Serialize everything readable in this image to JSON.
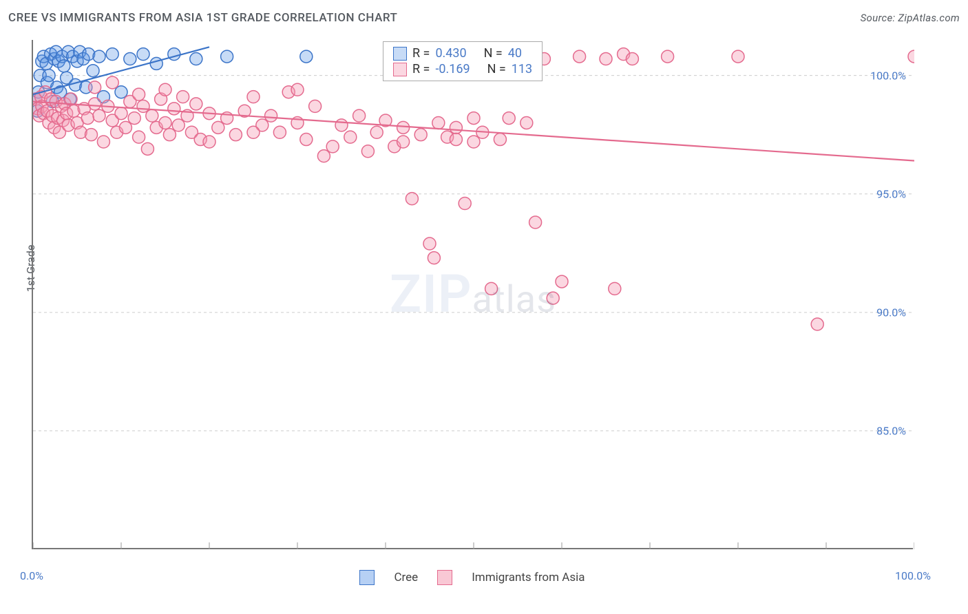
{
  "title": "CREE VS IMMIGRANTS FROM ASIA 1ST GRADE CORRELATION CHART",
  "source": "Source: ZipAtlas.com",
  "ylabel": "1st Grade",
  "watermark": {
    "bold": "ZIP",
    "light": "atlas"
  },
  "chart": {
    "type": "scatter",
    "xlim": [
      0,
      100
    ],
    "ylim": [
      80,
      101.5
    ],
    "xticks": [
      0,
      10,
      20,
      30,
      40,
      50,
      60,
      70,
      80,
      90,
      100
    ],
    "xtick_labels": {
      "0": "0.0%",
      "100": "100.0%"
    },
    "yticks": [
      85,
      90,
      95,
      100
    ],
    "ytick_labels": [
      "85.0%",
      "90.0%",
      "95.0%",
      "100.0%"
    ],
    "grid_color": "#cccccc",
    "grid_dash": "4,4",
    "background_color": "#ffffff",
    "marker_radius": 9,
    "marker_stroke_width": 1.5,
    "trend_line_width": 2.2,
    "series": [
      {
        "name": "Cree",
        "fill": "rgba(94,151,230,0.35)",
        "stroke": "#3b74c8",
        "R": "0.430",
        "N": "40",
        "trend": {
          "x1": 0,
          "y1": 99.2,
          "x2": 20,
          "y2": 101.2
        },
        "points": [
          [
            0.3,
            99.0
          ],
          [
            0.5,
            98.5
          ],
          [
            0.6,
            99.3
          ],
          [
            0.8,
            100.0
          ],
          [
            1.0,
            100.6
          ],
          [
            1.2,
            100.8
          ],
          [
            1.5,
            100.5
          ],
          [
            1.6,
            99.7
          ],
          [
            1.8,
            100.0
          ],
          [
            2.0,
            100.9
          ],
          [
            2.2,
            98.9
          ],
          [
            2.4,
            100.7
          ],
          [
            2.6,
            101.0
          ],
          [
            2.7,
            99.5
          ],
          [
            2.9,
            100.6
          ],
          [
            3.1,
            99.3
          ],
          [
            3.3,
            100.8
          ],
          [
            3.5,
            100.4
          ],
          [
            3.8,
            99.9
          ],
          [
            4.0,
            101.0
          ],
          [
            4.2,
            99.0
          ],
          [
            4.5,
            100.8
          ],
          [
            4.8,
            99.6
          ],
          [
            5.0,
            100.6
          ],
          [
            5.3,
            101.0
          ],
          [
            5.7,
            100.7
          ],
          [
            6.0,
            99.5
          ],
          [
            6.3,
            100.9
          ],
          [
            6.8,
            100.2
          ],
          [
            7.5,
            100.8
          ],
          [
            8.0,
            99.1
          ],
          [
            9.0,
            100.9
          ],
          [
            10.0,
            99.3
          ],
          [
            11.0,
            100.7
          ],
          [
            12.5,
            100.9
          ],
          [
            14.0,
            100.5
          ],
          [
            16.0,
            100.9
          ],
          [
            18.5,
            100.7
          ],
          [
            22.0,
            100.8
          ],
          [
            31.0,
            100.8
          ]
        ]
      },
      {
        "name": "Immigrants from Asia",
        "fill": "rgba(244,154,179,0.40)",
        "stroke": "#e46a8e",
        "R": "-0.169",
        "N": "113",
        "trend": {
          "x1": 0,
          "y1": 98.9,
          "x2": 100,
          "y2": 96.4
        },
        "points": [
          [
            0.3,
            99.0
          ],
          [
            0.5,
            98.6
          ],
          [
            0.7,
            98.3
          ],
          [
            0.9,
            99.1
          ],
          [
            1.0,
            98.7
          ],
          [
            1.2,
            98.4
          ],
          [
            1.4,
            99.3
          ],
          [
            1.6,
            98.5
          ],
          [
            1.8,
            98.0
          ],
          [
            2.0,
            99.0
          ],
          [
            2.2,
            98.3
          ],
          [
            2.4,
            97.8
          ],
          [
            2.6,
            98.9
          ],
          [
            2.8,
            98.2
          ],
          [
            3.0,
            97.6
          ],
          [
            3.2,
            98.7
          ],
          [
            3.4,
            98.1
          ],
          [
            3.6,
            98.8
          ],
          [
            3.8,
            98.4
          ],
          [
            4.0,
            97.9
          ],
          [
            4.3,
            99.0
          ],
          [
            4.6,
            98.5
          ],
          [
            5.0,
            98.0
          ],
          [
            5.4,
            97.6
          ],
          [
            5.8,
            98.6
          ],
          [
            6.2,
            98.2
          ],
          [
            6.6,
            97.5
          ],
          [
            7.0,
            98.8
          ],
          [
            7.5,
            98.3
          ],
          [
            8.0,
            97.2
          ],
          [
            8.5,
            98.7
          ],
          [
            9.0,
            98.1
          ],
          [
            9.5,
            97.6
          ],
          [
            10.0,
            98.4
          ],
          [
            10.5,
            97.8
          ],
          [
            11.0,
            98.9
          ],
          [
            11.5,
            98.2
          ],
          [
            12.0,
            97.4
          ],
          [
            12.5,
            98.7
          ],
          [
            13.0,
            96.9
          ],
          [
            13.5,
            98.3
          ],
          [
            14.0,
            97.8
          ],
          [
            14.5,
            99.0
          ],
          [
            15.0,
            98.0
          ],
          [
            15.5,
            97.5
          ],
          [
            16.0,
            98.6
          ],
          [
            16.5,
            97.9
          ],
          [
            17.0,
            99.1
          ],
          [
            17.5,
            98.3
          ],
          [
            18.0,
            97.6
          ],
          [
            18.5,
            98.8
          ],
          [
            19.0,
            97.3
          ],
          [
            20.0,
            98.4
          ],
          [
            21.0,
            97.8
          ],
          [
            22.0,
            98.2
          ],
          [
            23.0,
            97.5
          ],
          [
            24.0,
            98.5
          ],
          [
            25.0,
            99.1
          ],
          [
            26.0,
            97.9
          ],
          [
            27.0,
            98.3
          ],
          [
            28.0,
            97.6
          ],
          [
            29.0,
            99.3
          ],
          [
            30.0,
            98.0
          ],
          [
            31.0,
            97.3
          ],
          [
            32.0,
            98.7
          ],
          [
            33.0,
            96.6
          ],
          [
            34.0,
            97.0
          ],
          [
            35.0,
            97.9
          ],
          [
            36.0,
            97.4
          ],
          [
            37.0,
            98.3
          ],
          [
            38.0,
            96.8
          ],
          [
            39.0,
            97.6
          ],
          [
            40.0,
            98.1
          ],
          [
            41.0,
            97.0
          ],
          [
            42.0,
            97.8
          ],
          [
            43.0,
            94.8
          ],
          [
            44.0,
            97.5
          ],
          [
            45.0,
            92.9
          ],
          [
            45.5,
            92.3
          ],
          [
            46.0,
            98.0
          ],
          [
            47.0,
            97.4
          ],
          [
            48.0,
            97.8
          ],
          [
            49.0,
            94.6
          ],
          [
            50.0,
            97.2
          ],
          [
            51.0,
            97.6
          ],
          [
            52.0,
            91.0
          ],
          [
            53.0,
            97.3
          ],
          [
            54.0,
            98.2
          ],
          [
            55.0,
            100.8
          ],
          [
            56.0,
            98.0
          ],
          [
            57.0,
            93.8
          ],
          [
            58.0,
            100.7
          ],
          [
            59.0,
            90.6
          ],
          [
            60.0,
            91.3
          ],
          [
            62.0,
            100.8
          ],
          [
            65.0,
            100.7
          ],
          [
            66.0,
            91.0
          ],
          [
            67.0,
            100.9
          ],
          [
            68.0,
            100.7
          ],
          [
            72.0,
            100.8
          ],
          [
            80.0,
            100.8
          ],
          [
            89.0,
            89.5
          ],
          [
            100.0,
            100.8
          ],
          [
            7.0,
            99.5
          ],
          [
            9.0,
            99.7
          ],
          [
            12.0,
            99.2
          ],
          [
            15.0,
            99.4
          ],
          [
            20.0,
            97.2
          ],
          [
            25.0,
            97.6
          ],
          [
            30.0,
            99.4
          ],
          [
            42.0,
            97.2
          ],
          [
            48.0,
            97.3
          ],
          [
            50.0,
            98.2
          ]
        ]
      }
    ]
  },
  "legend": [
    {
      "swatch_bg": "rgba(94,151,230,0.45)",
      "swatch_border": "#3b74c8",
      "label": "Cree"
    },
    {
      "swatch_bg": "rgba(244,154,179,0.55)",
      "swatch_border": "#e46a8e",
      "label": "Immigrants from Asia"
    }
  ],
  "colors": {
    "text": "#555a60",
    "axis_label": "#4a7ac7",
    "axis_line": "#777777"
  },
  "fontsize": {
    "title": 17,
    "source": 15,
    "axis": 16,
    "corr": 18,
    "legend": 17
  }
}
